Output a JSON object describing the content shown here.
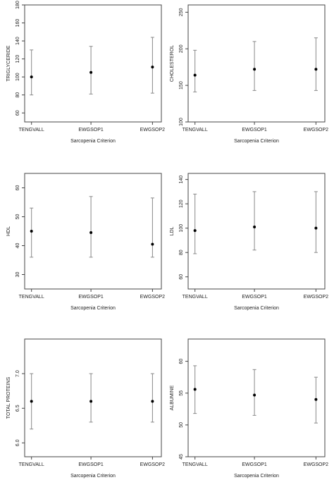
{
  "chart_data": [
    {
      "type": "scatter",
      "style": "point-with-error-bars",
      "xlabel": "Sarcopenia Criterion",
      "ylabel": "TRIGLYCERIDE",
      "categories": [
        "TENGVALL",
        "EWGSOP1",
        "EWGSOP2"
      ],
      "values": [
        100,
        105,
        111
      ],
      "lower": [
        80,
        81,
        82
      ],
      "upper": [
        130,
        134,
        144
      ],
      "ylim": [
        50,
        180
      ],
      "yticks": [
        "60",
        "80",
        "100",
        "120",
        "140",
        "160",
        "180"
      ]
    },
    {
      "type": "scatter",
      "style": "point-with-error-bars",
      "xlabel": "Sarcopenia Criterion",
      "ylabel": "CHOLESTEROL",
      "categories": [
        "TENGVALL",
        "EWGSOP1",
        "EWGSOP2"
      ],
      "values": [
        164,
        172,
        172
      ],
      "lower": [
        141,
        143,
        143
      ],
      "upper": [
        198,
        210,
        215
      ],
      "ylim": [
        100,
        260
      ],
      "yticks": [
        "100",
        "150",
        "200",
        "250"
      ]
    },
    {
      "type": "scatter",
      "style": "point-with-error-bars",
      "xlabel": "Sarcopenia Criterion",
      "ylabel": "HDL",
      "categories": [
        "TENGVALL",
        "EWGSOP1",
        "EWGSOP2"
      ],
      "values": [
        45,
        44.5,
        40.5
      ],
      "lower": [
        36,
        36,
        36
      ],
      "upper": [
        53,
        57,
        56.5
      ],
      "ylim": [
        25,
        65
      ],
      "yticks": [
        "30",
        "40",
        "50",
        "60"
      ]
    },
    {
      "type": "scatter",
      "style": "point-with-error-bars",
      "xlabel": "Sarcopenia Criterion",
      "ylabel": "LDL",
      "categories": [
        "TENGVALL",
        "EWGSOP1",
        "EWGSOP2"
      ],
      "values": [
        98,
        101,
        100
      ],
      "lower": [
        79,
        82,
        80
      ],
      "upper": [
        128,
        130,
        130
      ],
      "ylim": [
        50,
        145
      ],
      "yticks": [
        "60",
        "80",
        "100",
        "120",
        "140"
      ]
    },
    {
      "type": "scatter",
      "style": "point-with-error-bars",
      "xlabel": "Sarcopenia Criterion",
      "ylabel": "TOTAL PROTEINS",
      "categories": [
        "TENGVALL",
        "EWGSOP1",
        "EWGSOP2"
      ],
      "values": [
        6.6,
        6.6,
        6.6
      ],
      "lower": [
        6.2,
        6.3,
        6.3
      ],
      "upper": [
        7.0,
        7.0,
        7.0
      ],
      "ylim": [
        5.8,
        7.5
      ],
      "yticks": [
        "6.0",
        "6.5",
        "7.0"
      ]
    },
    {
      "type": "scatter",
      "style": "point-with-error-bars",
      "xlabel": "Sarcopenia Criterion",
      "ylabel": "ALBUMINE",
      "categories": [
        "TENGVALL",
        "EWGSOP1",
        "EWGSOP2"
      ],
      "values": [
        55.6,
        54.7,
        54
      ],
      "lower": [
        51.8,
        51.5,
        50.3
      ],
      "upper": [
        59.3,
        58.7,
        57.5
      ],
      "ylim": [
        45,
        63.5
      ],
      "yticks": [
        "45",
        "50",
        "55",
        "60"
      ]
    }
  ]
}
